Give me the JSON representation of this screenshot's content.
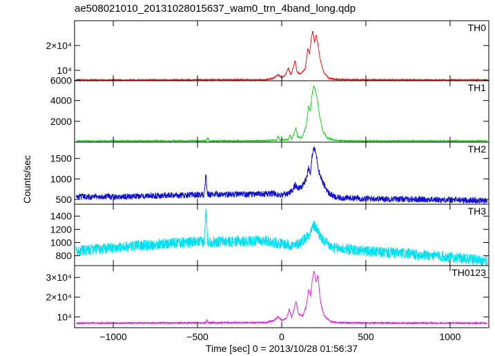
{
  "title": "ae508021010_20131028015637_wam0_trn_4band_long.qdp",
  "ylabel": "Counts/sec",
  "xlabel": "Time [sec] 0 = 2013/10/28 01:56:37",
  "chart_data": {
    "type": "line",
    "x_range": [
      -1230,
      1230
    ],
    "x_ticks": [
      -1000,
      -500,
      0,
      500,
      1000
    ],
    "x_tick_labels": [
      "−1000",
      "−500",
      "0",
      "500",
      "1000"
    ],
    "panels": [
      {
        "name": "TH0",
        "color": "#e8141c",
        "y_range": [
          5800,
          30000
        ],
        "y_tick_values": [
          6000,
          10000,
          20000
        ],
        "y_tick_labels": [
          "6000",
          "10⁴",
          "2×10⁴"
        ],
        "points": [
          [
            -1220,
            6100
          ],
          [
            -600,
            6100
          ],
          [
            -450,
            6200
          ],
          [
            -100,
            6200
          ],
          [
            -50,
            6800
          ],
          [
            -20,
            8200
          ],
          [
            0,
            7000
          ],
          [
            20,
            7800
          ],
          [
            40,
            11000
          ],
          [
            55,
            8000
          ],
          [
            70,
            11500
          ],
          [
            80,
            14000
          ],
          [
            90,
            9500
          ],
          [
            110,
            8500
          ],
          [
            140,
            10500
          ],
          [
            155,
            19000
          ],
          [
            165,
            16500
          ],
          [
            175,
            22500
          ],
          [
            185,
            26000
          ],
          [
            195,
            21000
          ],
          [
            205,
            24500
          ],
          [
            215,
            20500
          ],
          [
            230,
            14000
          ],
          [
            250,
            9000
          ],
          [
            280,
            6800
          ],
          [
            320,
            6300
          ],
          [
            500,
            6150
          ],
          [
            1220,
            6100
          ]
        ]
      },
      {
        "name": "TH1",
        "color": "#14d814",
        "y_range": [
          0,
          5900
        ],
        "y_tick_values": [
          2000,
          4000
        ],
        "y_tick_labels": [
          "2000",
          "4000"
        ],
        "points": [
          [
            -1220,
            100
          ],
          [
            -450,
            120
          ],
          [
            -440,
            400
          ],
          [
            -430,
            110
          ],
          [
            -100,
            130
          ],
          [
            -30,
            200
          ],
          [
            -20,
            600
          ],
          [
            -10,
            200
          ],
          [
            40,
            250
          ],
          [
            50,
            700
          ],
          [
            60,
            300
          ],
          [
            75,
            900
          ],
          [
            85,
            1400
          ],
          [
            95,
            500
          ],
          [
            120,
            400
          ],
          [
            145,
            1500
          ],
          [
            160,
            3500
          ],
          [
            170,
            3000
          ],
          [
            180,
            4500
          ],
          [
            190,
            5400
          ],
          [
            200,
            5000
          ],
          [
            210,
            4300
          ],
          [
            225,
            2500
          ],
          [
            245,
            1000
          ],
          [
            270,
            400
          ],
          [
            320,
            150
          ],
          [
            500,
            110
          ],
          [
            1220,
            100
          ]
        ]
      },
      {
        "name": "TH2",
        "color": "#1010d0",
        "y_range": [
          380,
          1900
        ],
        "y_tick_values": [
          500,
          1000,
          1500
        ],
        "y_tick_labels": [
          "500",
          "1000",
          "1500"
        ],
        "points": [
          [
            -1220,
            560
          ],
          [
            -900,
            570
          ],
          [
            -600,
            600
          ],
          [
            -460,
            610
          ],
          [
            -450,
            1100
          ],
          [
            -440,
            620
          ],
          [
            -200,
            620
          ],
          [
            -50,
            640
          ],
          [
            -10,
            600
          ],
          [
            30,
            620
          ],
          [
            60,
            700
          ],
          [
            80,
            860
          ],
          [
            95,
            760
          ],
          [
            120,
            800
          ],
          [
            145,
            1000
          ],
          [
            160,
            1280
          ],
          [
            172,
            1150
          ],
          [
            182,
            1600
          ],
          [
            192,
            1760
          ],
          [
            205,
            1600
          ],
          [
            220,
            1200
          ],
          [
            245,
            900
          ],
          [
            280,
            650
          ],
          [
            320,
            540
          ],
          [
            500,
            520
          ],
          [
            800,
            500
          ],
          [
            1220,
            470
          ]
        ]
      },
      {
        "name": "TH3",
        "color": "#00e0f0",
        "y_range": [
          650,
          1580
        ],
        "y_tick_values": [
          800,
          1000,
          1200,
          1400
        ],
        "y_tick_labels": [
          "800",
          "1000",
          "1200",
          "1400"
        ],
        "points": [
          [
            -1220,
            870
          ],
          [
            -1000,
            920
          ],
          [
            -800,
            960
          ],
          [
            -600,
            1000
          ],
          [
            -460,
            1010
          ],
          [
            -450,
            1520
          ],
          [
            -440,
            1010
          ],
          [
            -200,
            1020
          ],
          [
            -100,
            1030
          ],
          [
            0,
            980
          ],
          [
            80,
            950
          ],
          [
            120,
            1020
          ],
          [
            160,
            1120
          ],
          [
            190,
            1260
          ],
          [
            210,
            1200
          ],
          [
            240,
            1040
          ],
          [
            300,
            920
          ],
          [
            500,
            870
          ],
          [
            800,
            820
          ],
          [
            1000,
            780
          ],
          [
            1220,
            720
          ]
        ]
      },
      {
        "name": "TH0123",
        "color": "#e020e0",
        "y_range": [
          4500,
          36000
        ],
        "y_tick_values": [
          10000,
          20000,
          30000
        ],
        "y_tick_labels": [
          "10⁴",
          "2×10⁴",
          "3×10⁴"
        ],
        "points": [
          [
            -1220,
            6800
          ],
          [
            -600,
            6900
          ],
          [
            -450,
            7000
          ],
          [
            -445,
            8500
          ],
          [
            -440,
            7000
          ],
          [
            -100,
            7100
          ],
          [
            -50,
            8000
          ],
          [
            -20,
            10000
          ],
          [
            0,
            8200
          ],
          [
            30,
            9500
          ],
          [
            45,
            14000
          ],
          [
            60,
            9500
          ],
          [
            75,
            14500
          ],
          [
            85,
            18000
          ],
          [
            100,
            11500
          ],
          [
            125,
            10500
          ],
          [
            145,
            15000
          ],
          [
            160,
            24000
          ],
          [
            172,
            20500
          ],
          [
            182,
            29000
          ],
          [
            192,
            33500
          ],
          [
            205,
            27500
          ],
          [
            215,
            31000
          ],
          [
            230,
            18000
          ],
          [
            250,
            11000
          ],
          [
            285,
            7800
          ],
          [
            330,
            7100
          ],
          [
            500,
            6900
          ],
          [
            1220,
            6800
          ]
        ]
      }
    ]
  }
}
